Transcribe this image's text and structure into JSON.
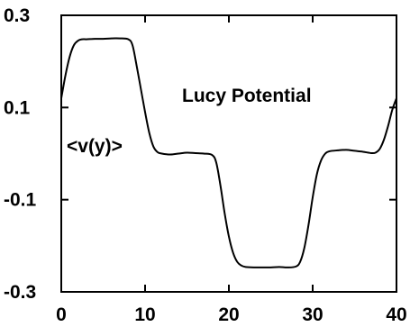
{
  "chart_data": {
    "type": "line",
    "title": "",
    "xlabel": "",
    "ylabel": "",
    "xlim": [
      0,
      40
    ],
    "ylim": [
      -0.3,
      0.3
    ],
    "x_ticks": [
      0,
      10,
      20,
      30,
      40
    ],
    "y_ticks": [
      0.3,
      0.1,
      -0.1,
      -0.3
    ],
    "x_tick_labels": [
      "0",
      "10",
      "20",
      "30",
      "40"
    ],
    "y_tick_labels": [
      "0.3",
      "0.1",
      "-0.1",
      "-0.3"
    ],
    "grid": false,
    "legend": "none",
    "annotations": [
      "Lucy Potential",
      "<v(y)>"
    ],
    "series": [
      {
        "color": "#000000",
        "x": [
          0,
          0.5,
          1,
          1.5,
          2,
          2.5,
          3,
          4,
          5,
          6,
          7,
          8,
          8.5,
          9,
          9.5,
          10,
          10.5,
          11,
          11.5,
          12,
          13,
          14,
          15,
          16,
          17,
          18,
          18.5,
          19,
          19.5,
          20,
          20.5,
          21,
          21.5,
          22,
          23,
          24,
          25,
          26,
          27,
          28,
          28.5,
          29,
          29.5,
          30,
          30.5,
          31,
          31.5,
          32,
          33,
          34,
          35,
          36,
          37,
          37.5,
          38,
          38.5,
          39,
          39.5,
          40
        ],
        "y": [
          0.12,
          0.17,
          0.21,
          0.235,
          0.245,
          0.248,
          0.248,
          0.249,
          0.249,
          0.25,
          0.25,
          0.248,
          0.235,
          0.19,
          0.14,
          0.09,
          0.045,
          0.015,
          0.003,
          0.0,
          -0.002,
          0.0,
          0.002,
          0.001,
          0.0,
          -0.003,
          -0.02,
          -0.07,
          -0.13,
          -0.18,
          -0.215,
          -0.235,
          -0.243,
          -0.246,
          -0.247,
          -0.247,
          -0.247,
          -0.246,
          -0.247,
          -0.245,
          -0.235,
          -0.205,
          -0.155,
          -0.095,
          -0.045,
          -0.015,
          0.0,
          0.005,
          0.007,
          0.008,
          0.006,
          0.004,
          0.001,
          0.002,
          0.01,
          0.03,
          0.06,
          0.095,
          0.12
        ]
      }
    ]
  },
  "colors": {
    "axis": "#000000",
    "line": "#000000",
    "background": "#ffffff"
  }
}
